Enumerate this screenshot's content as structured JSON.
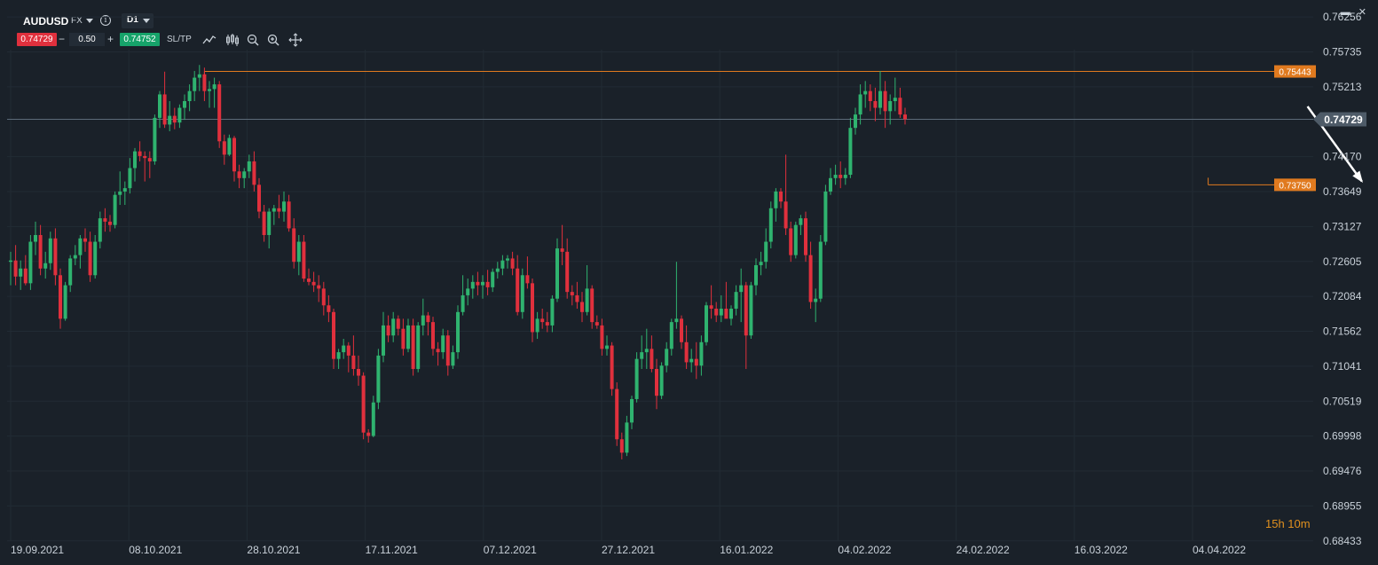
{
  "header": {
    "symbol": "AUDUSD",
    "market": "FX",
    "timeframe": "D1",
    "bid": "0.74729",
    "ask": "0.74752",
    "lot": "0.50",
    "minus": "−",
    "plus": "+",
    "sltp": "SL/TP",
    "info_icon": "info-icon",
    "tools": [
      "line-chart-icon",
      "candles-icon",
      "zoom-out-icon",
      "zoom-in-icon",
      "crosshair-icon"
    ]
  },
  "window_controls": {
    "minimize": "▬",
    "close": "✕"
  },
  "countdown": "15h 10m",
  "colors": {
    "background": "#1a2129",
    "up": "#2fb36f",
    "down": "#e0303d",
    "level": "#e07a1f",
    "price_line": "#5c6a78"
  },
  "chart_data": {
    "type": "candlestick",
    "symbol": "AUDUSD",
    "timeframe": "D1",
    "x_tick_labels": [
      "19.09.2021",
      "08.10.2021",
      "28.10.2021",
      "17.11.2021",
      "07.12.2021",
      "27.12.2021",
      "16.01.2022",
      "04.02.2022",
      "24.02.2022",
      "16.03.2022",
      "04.04.2022"
    ],
    "y_tick_labels": [
      "0.76256",
      "0.75735",
      "0.75213",
      "0.74170",
      "0.73649",
      "0.73127",
      "0.72605",
      "0.72084",
      "0.71562",
      "0.71041",
      "0.70519",
      "0.69998",
      "0.69476",
      "0.68955",
      "0.68433"
    ],
    "ylim": [
      0.6843,
      0.7651
    ],
    "current_price": 0.74729,
    "current_price_label": "0.74729",
    "levels": [
      {
        "value": 0.75443,
        "label": "0.75443",
        "start_candle": 39
      },
      {
        "value": 0.7375,
        "label": "0.73750",
        "start_candle": 241
      }
    ],
    "arrow": {
      "from": {
        "candle": 261,
        "price": 0.7492
      },
      "to": {
        "candle": 273,
        "price": 0.7375
      }
    },
    "candles": [
      {
        "o": 0.726,
        "h": 0.7275,
        "l": 0.7225,
        "c": 0.7262
      },
      {
        "o": 0.7262,
        "h": 0.7285,
        "l": 0.7225,
        "c": 0.7238
      },
      {
        "o": 0.7238,
        "h": 0.7262,
        "l": 0.7218,
        "c": 0.725
      },
      {
        "o": 0.725,
        "h": 0.727,
        "l": 0.7225,
        "c": 0.7228
      },
      {
        "o": 0.7228,
        "h": 0.73,
        "l": 0.7218,
        "c": 0.729
      },
      {
        "o": 0.729,
        "h": 0.732,
        "l": 0.727,
        "c": 0.73
      },
      {
        "o": 0.73,
        "h": 0.7315,
        "l": 0.724,
        "c": 0.725
      },
      {
        "o": 0.725,
        "h": 0.7275,
        "l": 0.7235,
        "c": 0.7258
      },
      {
        "o": 0.7258,
        "h": 0.7305,
        "l": 0.7248,
        "c": 0.7295
      },
      {
        "o": 0.7295,
        "h": 0.731,
        "l": 0.7225,
        "c": 0.724
      },
      {
        "o": 0.724,
        "h": 0.725,
        "l": 0.716,
        "c": 0.7175
      },
      {
        "o": 0.7175,
        "h": 0.723,
        "l": 0.7172,
        "c": 0.7225
      },
      {
        "o": 0.7225,
        "h": 0.727,
        "l": 0.7215,
        "c": 0.7265
      },
      {
        "o": 0.7265,
        "h": 0.7285,
        "l": 0.7255,
        "c": 0.727
      },
      {
        "o": 0.727,
        "h": 0.73,
        "l": 0.725,
        "c": 0.7295
      },
      {
        "o": 0.7295,
        "h": 0.731,
        "l": 0.7275,
        "c": 0.729
      },
      {
        "o": 0.729,
        "h": 0.7305,
        "l": 0.723,
        "c": 0.724
      },
      {
        "o": 0.724,
        "h": 0.73,
        "l": 0.7235,
        "c": 0.729
      },
      {
        "o": 0.729,
        "h": 0.7335,
        "l": 0.728,
        "c": 0.7325
      },
      {
        "o": 0.7325,
        "h": 0.734,
        "l": 0.7305,
        "c": 0.732
      },
      {
        "o": 0.732,
        "h": 0.733,
        "l": 0.7305,
        "c": 0.7315
      },
      {
        "o": 0.7315,
        "h": 0.7365,
        "l": 0.731,
        "c": 0.736
      },
      {
        "o": 0.736,
        "h": 0.7395,
        "l": 0.7345,
        "c": 0.7365
      },
      {
        "o": 0.7365,
        "h": 0.738,
        "l": 0.7345,
        "c": 0.737
      },
      {
        "o": 0.737,
        "h": 0.7415,
        "l": 0.7362,
        "c": 0.74
      },
      {
        "o": 0.74,
        "h": 0.743,
        "l": 0.738,
        "c": 0.7425
      },
      {
        "o": 0.7425,
        "h": 0.744,
        "l": 0.741,
        "c": 0.7418
      },
      {
        "o": 0.7418,
        "h": 0.7425,
        "l": 0.738,
        "c": 0.7415
      },
      {
        "o": 0.7415,
        "h": 0.7425,
        "l": 0.7385,
        "c": 0.741
      },
      {
        "o": 0.741,
        "h": 0.748,
        "l": 0.7405,
        "c": 0.7475
      },
      {
        "o": 0.7475,
        "h": 0.7515,
        "l": 0.746,
        "c": 0.751
      },
      {
        "o": 0.751,
        "h": 0.7544,
        "l": 0.746,
        "c": 0.7465
      },
      {
        "o": 0.7465,
        "h": 0.75,
        "l": 0.7455,
        "c": 0.7478
      },
      {
        "o": 0.7478,
        "h": 0.749,
        "l": 0.7458,
        "c": 0.7468
      },
      {
        "o": 0.7468,
        "h": 0.7495,
        "l": 0.746,
        "c": 0.749
      },
      {
        "o": 0.749,
        "h": 0.751,
        "l": 0.7472,
        "c": 0.75
      },
      {
        "o": 0.75,
        "h": 0.7525,
        "l": 0.7485,
        "c": 0.7515
      },
      {
        "o": 0.7515,
        "h": 0.7545,
        "l": 0.75,
        "c": 0.7535
      },
      {
        "o": 0.7535,
        "h": 0.7554,
        "l": 0.7515,
        "c": 0.754
      },
      {
        "o": 0.754,
        "h": 0.755,
        "l": 0.75,
        "c": 0.7515
      },
      {
        "o": 0.7515,
        "h": 0.753,
        "l": 0.749,
        "c": 0.7518
      },
      {
        "o": 0.7518,
        "h": 0.7535,
        "l": 0.749,
        "c": 0.7525
      },
      {
        "o": 0.7525,
        "h": 0.753,
        "l": 0.743,
        "c": 0.744
      },
      {
        "o": 0.744,
        "h": 0.745,
        "l": 0.7405,
        "c": 0.742
      },
      {
        "o": 0.742,
        "h": 0.745,
        "l": 0.7418,
        "c": 0.7445
      },
      {
        "o": 0.7445,
        "h": 0.7448,
        "l": 0.738,
        "c": 0.7395
      },
      {
        "o": 0.7395,
        "h": 0.7405,
        "l": 0.737,
        "c": 0.7385
      },
      {
        "o": 0.7385,
        "h": 0.74,
        "l": 0.737,
        "c": 0.7395
      },
      {
        "o": 0.7395,
        "h": 0.742,
        "l": 0.7385,
        "c": 0.741
      },
      {
        "o": 0.741,
        "h": 0.7425,
        "l": 0.7365,
        "c": 0.7375
      },
      {
        "o": 0.7375,
        "h": 0.7385,
        "l": 0.7325,
        "c": 0.7335
      },
      {
        "o": 0.7335,
        "h": 0.7345,
        "l": 0.729,
        "c": 0.73
      },
      {
        "o": 0.73,
        "h": 0.734,
        "l": 0.728,
        "c": 0.7335
      },
      {
        "o": 0.7335,
        "h": 0.7345,
        "l": 0.7315,
        "c": 0.734
      },
      {
        "o": 0.734,
        "h": 0.736,
        "l": 0.7325,
        "c": 0.7335
      },
      {
        "o": 0.7335,
        "h": 0.7365,
        "l": 0.732,
        "c": 0.735
      },
      {
        "o": 0.735,
        "h": 0.736,
        "l": 0.7305,
        "c": 0.731
      },
      {
        "o": 0.731,
        "h": 0.7325,
        "l": 0.725,
        "c": 0.726
      },
      {
        "o": 0.726,
        "h": 0.73,
        "l": 0.724,
        "c": 0.729
      },
      {
        "o": 0.729,
        "h": 0.73,
        "l": 0.723,
        "c": 0.7235
      },
      {
        "o": 0.7235,
        "h": 0.725,
        "l": 0.7225,
        "c": 0.723
      },
      {
        "o": 0.723,
        "h": 0.7245,
        "l": 0.7215,
        "c": 0.7225
      },
      {
        "o": 0.7225,
        "h": 0.724,
        "l": 0.72,
        "c": 0.722
      },
      {
        "o": 0.722,
        "h": 0.723,
        "l": 0.718,
        "c": 0.7195
      },
      {
        "o": 0.7195,
        "h": 0.721,
        "l": 0.717,
        "c": 0.7185
      },
      {
        "o": 0.7185,
        "h": 0.719,
        "l": 0.71,
        "c": 0.7115
      },
      {
        "o": 0.7115,
        "h": 0.713,
        "l": 0.71,
        "c": 0.7125
      },
      {
        "o": 0.7125,
        "h": 0.7145,
        "l": 0.7115,
        "c": 0.7135
      },
      {
        "o": 0.7135,
        "h": 0.714,
        "l": 0.7095,
        "c": 0.712
      },
      {
        "o": 0.712,
        "h": 0.715,
        "l": 0.709,
        "c": 0.71
      },
      {
        "o": 0.71,
        "h": 0.712,
        "l": 0.7075,
        "c": 0.709
      },
      {
        "o": 0.709,
        "h": 0.7095,
        "l": 0.6995,
        "c": 0.7005
      },
      {
        "o": 0.7005,
        "h": 0.701,
        "l": 0.699,
        "c": 0.7
      },
      {
        "o": 0.7,
        "h": 0.706,
        "l": 0.6998,
        "c": 0.705
      },
      {
        "o": 0.705,
        "h": 0.713,
        "l": 0.704,
        "c": 0.712
      },
      {
        "o": 0.712,
        "h": 0.7185,
        "l": 0.711,
        "c": 0.7165
      },
      {
        "o": 0.7165,
        "h": 0.718,
        "l": 0.714,
        "c": 0.715
      },
      {
        "o": 0.715,
        "h": 0.7185,
        "l": 0.714,
        "c": 0.7175
      },
      {
        "o": 0.7175,
        "h": 0.718,
        "l": 0.715,
        "c": 0.716
      },
      {
        "o": 0.716,
        "h": 0.7175,
        "l": 0.712,
        "c": 0.713
      },
      {
        "o": 0.713,
        "h": 0.7175,
        "l": 0.7125,
        "c": 0.7165
      },
      {
        "o": 0.7165,
        "h": 0.7175,
        "l": 0.709,
        "c": 0.71
      },
      {
        "o": 0.71,
        "h": 0.717,
        "l": 0.7095,
        "c": 0.7165
      },
      {
        "o": 0.7165,
        "h": 0.7205,
        "l": 0.715,
        "c": 0.718
      },
      {
        "o": 0.718,
        "h": 0.7185,
        "l": 0.715,
        "c": 0.717
      },
      {
        "o": 0.717,
        "h": 0.7178,
        "l": 0.712,
        "c": 0.713
      },
      {
        "o": 0.713,
        "h": 0.714,
        "l": 0.7105,
        "c": 0.7125
      },
      {
        "o": 0.7125,
        "h": 0.716,
        "l": 0.7115,
        "c": 0.715
      },
      {
        "o": 0.715,
        "h": 0.7158,
        "l": 0.709,
        "c": 0.7105
      },
      {
        "o": 0.7105,
        "h": 0.7135,
        "l": 0.71,
        "c": 0.7125
      },
      {
        "o": 0.7125,
        "h": 0.7195,
        "l": 0.7115,
        "c": 0.7185
      },
      {
        "o": 0.7185,
        "h": 0.724,
        "l": 0.718,
        "c": 0.721
      },
      {
        "o": 0.721,
        "h": 0.7235,
        "l": 0.7195,
        "c": 0.722
      },
      {
        "o": 0.722,
        "h": 0.724,
        "l": 0.7205,
        "c": 0.723
      },
      {
        "o": 0.723,
        "h": 0.7245,
        "l": 0.721,
        "c": 0.7225
      },
      {
        "o": 0.7225,
        "h": 0.724,
        "l": 0.7205,
        "c": 0.723
      },
      {
        "o": 0.723,
        "h": 0.7248,
        "l": 0.721,
        "c": 0.7222
      },
      {
        "o": 0.7222,
        "h": 0.725,
        "l": 0.7215,
        "c": 0.7245
      },
      {
        "o": 0.7245,
        "h": 0.726,
        "l": 0.7235,
        "c": 0.725
      },
      {
        "o": 0.725,
        "h": 0.727,
        "l": 0.724,
        "c": 0.7262
      },
      {
        "o": 0.7262,
        "h": 0.727,
        "l": 0.725,
        "c": 0.7265
      },
      {
        "o": 0.7265,
        "h": 0.7275,
        "l": 0.724,
        "c": 0.725
      },
      {
        "o": 0.725,
        "h": 0.727,
        "l": 0.718,
        "c": 0.7185
      },
      {
        "o": 0.7185,
        "h": 0.725,
        "l": 0.7175,
        "c": 0.724
      },
      {
        "o": 0.724,
        "h": 0.7268,
        "l": 0.722,
        "c": 0.7228
      },
      {
        "o": 0.7228,
        "h": 0.7235,
        "l": 0.714,
        "c": 0.7155
      },
      {
        "o": 0.7155,
        "h": 0.7185,
        "l": 0.7145,
        "c": 0.7175
      },
      {
        "o": 0.7175,
        "h": 0.719,
        "l": 0.716,
        "c": 0.717
      },
      {
        "o": 0.717,
        "h": 0.7185,
        "l": 0.7155,
        "c": 0.7165
      },
      {
        "o": 0.7165,
        "h": 0.721,
        "l": 0.7155,
        "c": 0.7205
      },
      {
        "o": 0.7205,
        "h": 0.7295,
        "l": 0.72,
        "c": 0.728
      },
      {
        "o": 0.728,
        "h": 0.7315,
        "l": 0.7255,
        "c": 0.7275
      },
      {
        "o": 0.7275,
        "h": 0.7295,
        "l": 0.7205,
        "c": 0.7215
      },
      {
        "o": 0.7215,
        "h": 0.7225,
        "l": 0.7195,
        "c": 0.721
      },
      {
        "o": 0.721,
        "h": 0.723,
        "l": 0.719,
        "c": 0.72
      },
      {
        "o": 0.72,
        "h": 0.7215,
        "l": 0.717,
        "c": 0.7185
      },
      {
        "o": 0.7185,
        "h": 0.7255,
        "l": 0.718,
        "c": 0.722
      },
      {
        "o": 0.722,
        "h": 0.7225,
        "l": 0.716,
        "c": 0.717
      },
      {
        "o": 0.717,
        "h": 0.718,
        "l": 0.716,
        "c": 0.7165
      },
      {
        "o": 0.7165,
        "h": 0.7175,
        "l": 0.712,
        "c": 0.713
      },
      {
        "o": 0.713,
        "h": 0.715,
        "l": 0.712,
        "c": 0.7135
      },
      {
        "o": 0.7135,
        "h": 0.714,
        "l": 0.706,
        "c": 0.707
      },
      {
        "o": 0.707,
        "h": 0.708,
        "l": 0.6985,
        "c": 0.6995
      },
      {
        "o": 0.6995,
        "h": 0.7005,
        "l": 0.6965,
        "c": 0.6975
      },
      {
        "o": 0.6975,
        "h": 0.703,
        "l": 0.697,
        "c": 0.702
      },
      {
        "o": 0.702,
        "h": 0.706,
        "l": 0.701,
        "c": 0.7055
      },
      {
        "o": 0.7055,
        "h": 0.7125,
        "l": 0.705,
        "c": 0.7115
      },
      {
        "o": 0.7115,
        "h": 0.715,
        "l": 0.71,
        "c": 0.7125
      },
      {
        "o": 0.7125,
        "h": 0.716,
        "l": 0.71,
        "c": 0.713
      },
      {
        "o": 0.713,
        "h": 0.715,
        "l": 0.7095,
        "c": 0.71
      },
      {
        "o": 0.71,
        "h": 0.7115,
        "l": 0.704,
        "c": 0.706
      },
      {
        "o": 0.706,
        "h": 0.711,
        "l": 0.7055,
        "c": 0.7105
      },
      {
        "o": 0.7105,
        "h": 0.714,
        "l": 0.7095,
        "c": 0.713
      },
      {
        "o": 0.713,
        "h": 0.7175,
        "l": 0.712,
        "c": 0.717
      },
      {
        "o": 0.717,
        "h": 0.726,
        "l": 0.716,
        "c": 0.7175
      },
      {
        "o": 0.7175,
        "h": 0.718,
        "l": 0.713,
        "c": 0.714
      },
      {
        "o": 0.714,
        "h": 0.7165,
        "l": 0.71,
        "c": 0.711
      },
      {
        "o": 0.711,
        "h": 0.713,
        "l": 0.7095,
        "c": 0.7115
      },
      {
        "o": 0.7115,
        "h": 0.714,
        "l": 0.7085,
        "c": 0.7105
      },
      {
        "o": 0.7105,
        "h": 0.715,
        "l": 0.709,
        "c": 0.714
      },
      {
        "o": 0.714,
        "h": 0.72,
        "l": 0.7135,
        "c": 0.7195
      },
      {
        "o": 0.7195,
        "h": 0.7225,
        "l": 0.7175,
        "c": 0.719
      },
      {
        "o": 0.719,
        "h": 0.72,
        "l": 0.717,
        "c": 0.718
      },
      {
        "o": 0.718,
        "h": 0.721,
        "l": 0.717,
        "c": 0.719
      },
      {
        "o": 0.719,
        "h": 0.723,
        "l": 0.718,
        "c": 0.7175
      },
      {
        "o": 0.7175,
        "h": 0.7195,
        "l": 0.7165,
        "c": 0.719
      },
      {
        "o": 0.719,
        "h": 0.7225,
        "l": 0.718,
        "c": 0.7215
      },
      {
        "o": 0.7215,
        "h": 0.725,
        "l": 0.717,
        "c": 0.7225
      },
      {
        "o": 0.7225,
        "h": 0.723,
        "l": 0.71,
        "c": 0.715
      },
      {
        "o": 0.715,
        "h": 0.723,
        "l": 0.7145,
        "c": 0.7225
      },
      {
        "o": 0.7225,
        "h": 0.7265,
        "l": 0.721,
        "c": 0.7255
      },
      {
        "o": 0.7255,
        "h": 0.7275,
        "l": 0.724,
        "c": 0.726
      },
      {
        "o": 0.726,
        "h": 0.731,
        "l": 0.725,
        "c": 0.729
      },
      {
        "o": 0.729,
        "h": 0.735,
        "l": 0.728,
        "c": 0.734
      },
      {
        "o": 0.734,
        "h": 0.737,
        "l": 0.732,
        "c": 0.7365
      },
      {
        "o": 0.7365,
        "h": 0.737,
        "l": 0.734,
        "c": 0.735
      },
      {
        "o": 0.735,
        "h": 0.742,
        "l": 0.73,
        "c": 0.731
      },
      {
        "o": 0.731,
        "h": 0.732,
        "l": 0.726,
        "c": 0.727
      },
      {
        "o": 0.727,
        "h": 0.732,
        "l": 0.7265,
        "c": 0.7315
      },
      {
        "o": 0.7315,
        "h": 0.733,
        "l": 0.73,
        "c": 0.7325
      },
      {
        "o": 0.7325,
        "h": 0.7335,
        "l": 0.726,
        "c": 0.727
      },
      {
        "o": 0.727,
        "h": 0.729,
        "l": 0.719,
        "c": 0.72
      },
      {
        "o": 0.72,
        "h": 0.722,
        "l": 0.717,
        "c": 0.7205
      },
      {
        "o": 0.7205,
        "h": 0.73,
        "l": 0.72,
        "c": 0.729
      },
      {
        "o": 0.729,
        "h": 0.7375,
        "l": 0.7285,
        "c": 0.7365
      },
      {
        "o": 0.7365,
        "h": 0.74,
        "l": 0.736,
        "c": 0.7385
      },
      {
        "o": 0.7385,
        "h": 0.7405,
        "l": 0.7375,
        "c": 0.739
      },
      {
        "o": 0.739,
        "h": 0.741,
        "l": 0.737,
        "c": 0.7385
      },
      {
        "o": 0.7385,
        "h": 0.74,
        "l": 0.7375,
        "c": 0.739
      },
      {
        "o": 0.739,
        "h": 0.7475,
        "l": 0.7385,
        "c": 0.746
      },
      {
        "o": 0.746,
        "h": 0.749,
        "l": 0.745,
        "c": 0.748
      },
      {
        "o": 0.748,
        "h": 0.7525,
        "l": 0.7465,
        "c": 0.751
      },
      {
        "o": 0.751,
        "h": 0.753,
        "l": 0.749,
        "c": 0.7515
      },
      {
        "o": 0.7515,
        "h": 0.7525,
        "l": 0.7485,
        "c": 0.75
      },
      {
        "o": 0.75,
        "h": 0.752,
        "l": 0.747,
        "c": 0.749
      },
      {
        "o": 0.749,
        "h": 0.7545,
        "l": 0.748,
        "c": 0.7515
      },
      {
        "o": 0.7515,
        "h": 0.753,
        "l": 0.746,
        "c": 0.7485
      },
      {
        "o": 0.7485,
        "h": 0.751,
        "l": 0.7465,
        "c": 0.75
      },
      {
        "o": 0.75,
        "h": 0.7535,
        "l": 0.7485,
        "c": 0.7505
      },
      {
        "o": 0.7505,
        "h": 0.752,
        "l": 0.7475,
        "c": 0.748
      },
      {
        "o": 0.748,
        "h": 0.749,
        "l": 0.7465,
        "c": 0.7473
      }
    ]
  }
}
